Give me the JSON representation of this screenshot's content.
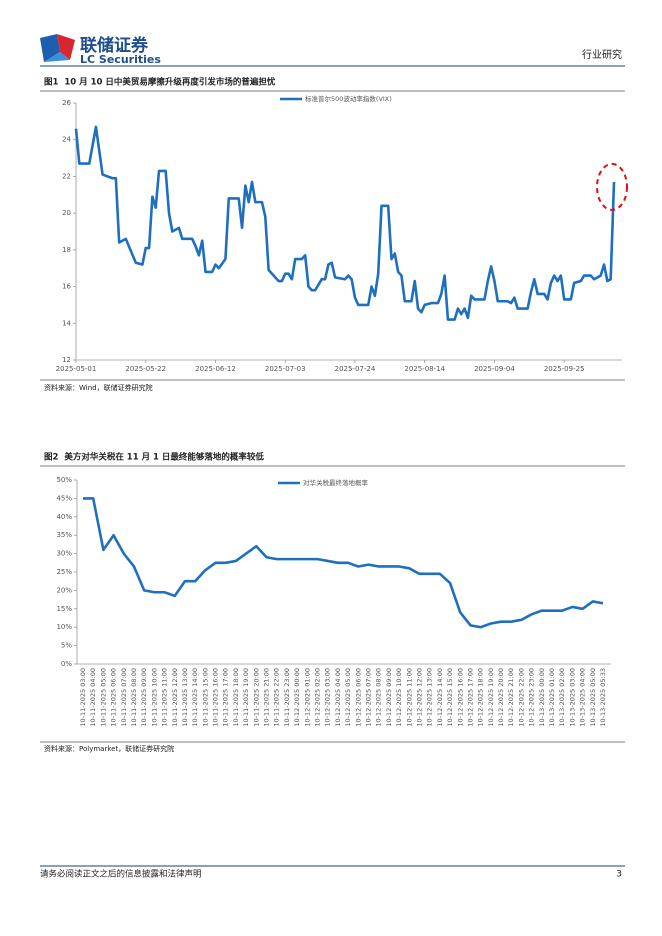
{
  "header": {
    "company": "联储证券",
    "company_en": "LC Securities",
    "section": "行业研究"
  },
  "chart_data": [
    {
      "type": "line",
      "title": "图1  10 月 10 日中美贸易摩擦升级再度引发市场的普遍担忧",
      "source": "资料来源：Wind，联储证券研究院",
      "legend": "top",
      "x": [
        "2025-05-01",
        "2025-05-02",
        "2025-05-05",
        "2025-05-07",
        "2025-05-09",
        "2025-05-12",
        "2025-05-13",
        "2025-05-14",
        "2025-05-16",
        "2025-05-19",
        "2025-05-21",
        "2025-05-22",
        "2025-05-23",
        "2025-05-24",
        "2025-05-25",
        "2025-05-26",
        "2025-05-28",
        "2025-05-29",
        "2025-05-30",
        "2025-06-01",
        "2025-06-02",
        "2025-06-05",
        "2025-06-06",
        "2025-06-07",
        "2025-06-08",
        "2025-06-09",
        "2025-06-11",
        "2025-06-12",
        "2025-06-13",
        "2025-06-15",
        "2025-06-16",
        "2025-06-19",
        "2025-06-20",
        "2025-06-21",
        "2025-06-22",
        "2025-06-23",
        "2025-06-24",
        "2025-06-26",
        "2025-06-27",
        "2025-06-28",
        "2025-06-30",
        "2025-07-01",
        "2025-07-02",
        "2025-07-03",
        "2025-07-04",
        "2025-07-05",
        "2025-07-06",
        "2025-07-08",
        "2025-07-09",
        "2025-07-10",
        "2025-07-11",
        "2025-07-12",
        "2025-07-14",
        "2025-07-15",
        "2025-07-16",
        "2025-07-17",
        "2025-07-18",
        "2025-07-21",
        "2025-07-22",
        "2025-07-23",
        "2025-07-24",
        "2025-07-25",
        "2025-07-28",
        "2025-07-29",
        "2025-07-30",
        "2025-07-31",
        "2025-08-01",
        "2025-08-03",
        "2025-08-04",
        "2025-08-05",
        "2025-08-06",
        "2025-08-07",
        "2025-08-08",
        "2025-08-10",
        "2025-08-11",
        "2025-08-12",
        "2025-08-13",
        "2025-08-14",
        "2025-08-16",
        "2025-08-18",
        "2025-08-19",
        "2025-08-20",
        "2025-08-21",
        "2025-08-23",
        "2025-08-24",
        "2025-08-25",
        "2025-08-26",
        "2025-08-27",
        "2025-08-28",
        "2025-08-29",
        "2025-09-01",
        "2025-09-02",
        "2025-09-03",
        "2025-09-04",
        "2025-09-05",
        "2025-09-08",
        "2025-09-09",
        "2025-09-10",
        "2025-09-11",
        "2025-09-14",
        "2025-09-15",
        "2025-09-16",
        "2025-09-17",
        "2025-09-19",
        "2025-09-20",
        "2025-09-21",
        "2025-09-22",
        "2025-09-23",
        "2025-09-24",
        "2025-09-25",
        "2025-09-27",
        "2025-09-28",
        "2025-09-30",
        "2025-10-01",
        "2025-10-03",
        "2025-10-04",
        "2025-10-06",
        "2025-10-07",
        "2025-10-08",
        "2025-10-09",
        "2025-10-10"
      ],
      "series": [
        {
          "name": "标准普尔500波动率指数(VIX)",
          "color": "#1f6fbf",
          "values": [
            24.6,
            22.7,
            22.7,
            24.7,
            22.1,
            21.9,
            21.9,
            18.4,
            18.6,
            17.3,
            17.2,
            18.1,
            18.1,
            20.9,
            20.3,
            22.3,
            22.3,
            20.0,
            19.0,
            19.2,
            18.6,
            18.6,
            18.2,
            17.7,
            18.5,
            16.8,
            16.8,
            17.2,
            17.0,
            17.5,
            20.8,
            20.8,
            19.2,
            21.5,
            20.6,
            21.7,
            20.6,
            20.6,
            19.8,
            16.9,
            16.5,
            16.3,
            16.3,
            16.7,
            16.7,
            16.4,
            17.5,
            17.5,
            17.7,
            16.0,
            15.8,
            15.8,
            16.4,
            16.4,
            17.2,
            17.3,
            16.5,
            16.4,
            16.6,
            16.4,
            15.4,
            15.0,
            15.0,
            16.0,
            15.5,
            16.7,
            20.4,
            20.4,
            17.5,
            17.8,
            16.8,
            16.6,
            15.2,
            15.2,
            16.3,
            14.8,
            14.6,
            15.0,
            15.1,
            15.1,
            15.6,
            16.6,
            14.2,
            14.2,
            14.8,
            14.5,
            14.8,
            14.3,
            15.5,
            15.3,
            15.3,
            16.3,
            17.1,
            16.3,
            15.2,
            15.2,
            15.1,
            15.4,
            14.8,
            14.8,
            15.7,
            16.4,
            15.6,
            15.6,
            15.3,
            16.2,
            16.6,
            16.3,
            16.6,
            15.3,
            15.3,
            16.2,
            16.3,
            16.6,
            16.6,
            16.4,
            16.6,
            17.2,
            16.3,
            16.4,
            21.7
          ]
        }
      ],
      "xlim": [
        "2025-05-01",
        "2025-10-10"
      ],
      "xticks": [
        "2025-05-01",
        "2025-05-22",
        "2025-06-12",
        "2025-07-03",
        "2025-07-24",
        "2025-08-14",
        "2025-09-04",
        "2025-09-25"
      ],
      "ylim": [
        12,
        26
      ],
      "yticks": [
        12,
        14,
        16,
        18,
        20,
        22,
        24,
        26
      ]
    },
    {
      "type": "line",
      "title": "图2  美方对华关税在 11 月 1 日最终能够落地的概率较低",
      "source": "资料来源：Polymarket，联储证券研究院",
      "legend": "top",
      "categories": [
        "10-11-2025 03:00",
        "10-11-2025 04:00",
        "10-11-2025 05:00",
        "10-11-2025 06:00",
        "10-11-2025 07:00",
        "10-11-2025 08:00",
        "10-11-2025 09:00",
        "10-11-2025 10:00",
        "10-11-2025 11:00",
        "10-11-2025 12:00",
        "10-11-2025 13:00",
        "10-11-2025 14:00",
        "10-11-2025 15:00",
        "10-11-2025 16:00",
        "10-11-2025 17:00",
        "10-11-2025 18:00",
        "10-11-2025 19:00",
        "10-11-2025 20:00",
        "10-11-2025 21:00",
        "10-11-2025 22:00",
        "10-11-2025 23:00",
        "10-12-2025 00:00",
        "10-12-2025 01:00",
        "10-12-2025 02:00",
        "10-12-2025 03:00",
        "10-12-2025 04:00",
        "10-12-2025 05:00",
        "10-12-2025 06:00",
        "10-12-2025 07:00",
        "10-12-2025 08:00",
        "10-12-2025 09:00",
        "10-12-2025 10:00",
        "10-12-2025 11:00",
        "10-12-2025 12:00",
        "10-12-2025 13:00",
        "10-12-2025 14:00",
        "10-12-2025 15:00",
        "10-12-2025 16:00",
        "10-12-2025 17:00",
        "10-12-2025 18:00",
        "10-12-2025 19:00",
        "10-12-2025 20:00",
        "10-12-2025 21:00",
        "10-12-2025 22:00",
        "10-12-2025 23:00",
        "10-13-2025 00:00",
        "10-13-2025 01:00",
        "10-13-2025 02:00",
        "10-13-2025 03:00",
        "10-13-2025 04:00",
        "10-13-2025 05:00",
        "10-13-2025 05:33"
      ],
      "series": [
        {
          "name": "对华关税最终落地概率",
          "color": "#1f6fbf",
          "values": [
            45,
            45,
            31,
            35,
            30,
            26.5,
            20,
            19.5,
            19.5,
            18.5,
            22.5,
            22.5,
            25.5,
            27.5,
            27.5,
            28,
            30,
            32,
            29,
            28.5,
            28.5,
            28.5,
            28.5,
            28.5,
            28,
            27.5,
            27.5,
            26.5,
            27,
            26.5,
            26.5,
            26.5,
            26,
            24.5,
            24.5,
            24.5,
            22,
            14,
            10.5,
            10,
            11,
            11.5,
            11.5,
            12,
            13.5,
            14.5,
            14.5,
            14.5,
            15.5,
            15,
            17,
            16.5
          ]
        }
      ],
      "ylim": [
        0,
        50
      ],
      "yticks": [
        {
          "value": 0,
          "label": "0%"
        },
        {
          "value": 5,
          "label": "5%"
        },
        {
          "value": 10,
          "label": "10%"
        },
        {
          "value": 15,
          "label": "15%"
        },
        {
          "value": 20,
          "label": "20%"
        },
        {
          "value": 25,
          "label": "25%"
        },
        {
          "value": 30,
          "label": "30%"
        },
        {
          "value": 35,
          "label": "35%"
        },
        {
          "value": 40,
          "label": "40%"
        },
        {
          "value": 45,
          "label": "45%"
        },
        {
          "value": 50,
          "label": "50%"
        }
      ]
    }
  ],
  "footer": {
    "disclaimer": "请务必阅读正文之后的信息披露和法律声明",
    "page": 3
  }
}
